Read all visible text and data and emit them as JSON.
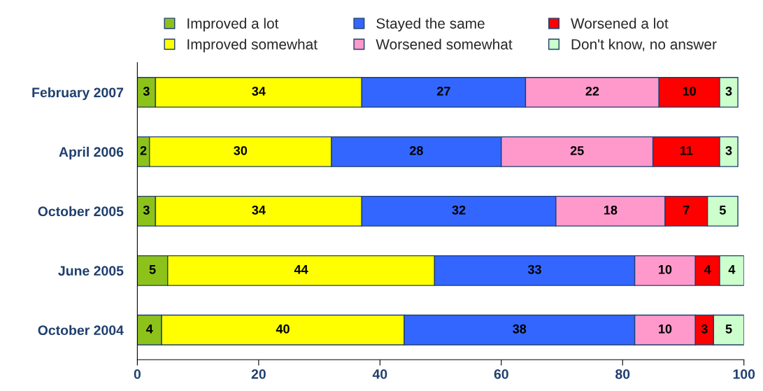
{
  "chart_data": {
    "type": "bar",
    "orientation": "horizontal",
    "stacked": true,
    "data_labels": true,
    "legend": "top",
    "grid": false,
    "categories": [
      "February 2007",
      "April 2006",
      "October 2005",
      "June 2005",
      "October 2004"
    ],
    "series": [
      {
        "name": "Improved a lot",
        "color": "#8cc21a",
        "values": [
          3,
          2,
          3,
          5,
          4
        ]
      },
      {
        "name": "Improved somewhat",
        "color": "#ffff00",
        "values": [
          34,
          30,
          34,
          44,
          40
        ]
      },
      {
        "name": "Stayed the same",
        "color": "#3366ff",
        "values": [
          27,
          28,
          32,
          33,
          38
        ]
      },
      {
        "name": "Worsened somewhat",
        "color": "#ff99cc",
        "values": [
          22,
          25,
          18,
          10,
          10
        ]
      },
      {
        "name": "Worsened a lot",
        "color": "#ff0000",
        "values": [
          10,
          11,
          7,
          4,
          3
        ]
      },
      {
        "name": "Don't know, no answer",
        "color": "#ccffcc",
        "values": [
          3,
          3,
          5,
          4,
          5
        ]
      }
    ],
    "xlim": [
      0,
      100
    ],
    "xticks": [
      0,
      20,
      40,
      60,
      80,
      100
    ]
  }
}
